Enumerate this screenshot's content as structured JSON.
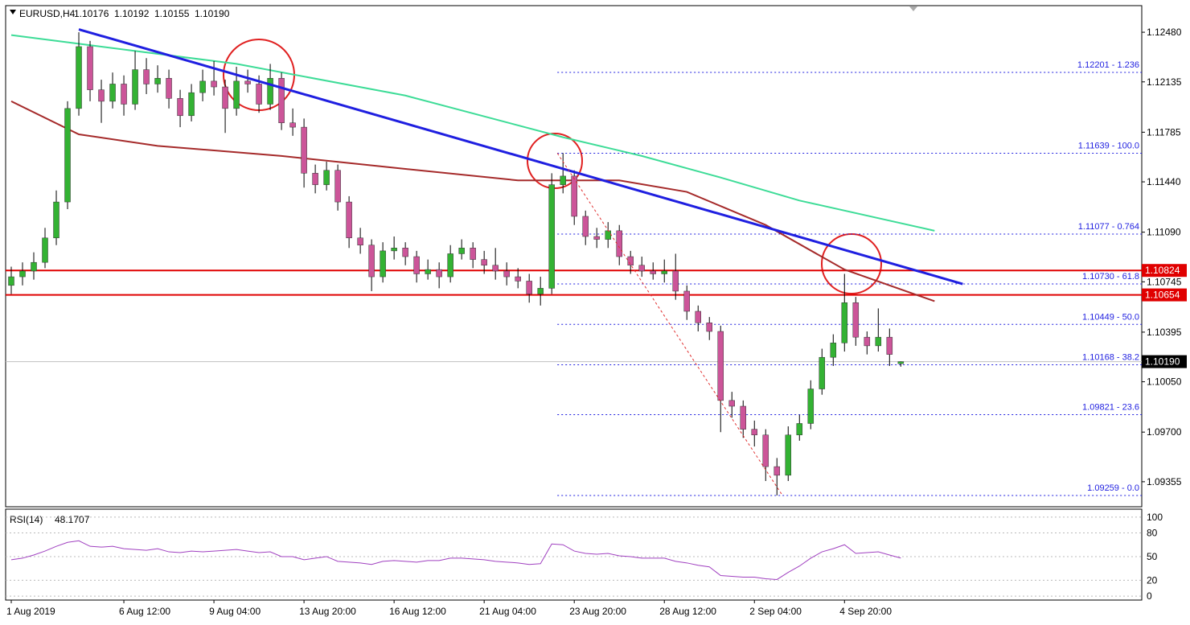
{
  "header": {
    "symbol": "EURUSD,H4",
    "quote": [
      "1.10176",
      "1.10192",
      "1.10155",
      "1.10190"
    ]
  },
  "chart_data": {
    "type": "candlestick",
    "up_color": "#33b233",
    "down_color": "#cc5599",
    "wick_color": "#000000",
    "xlim": [
      -0.5,
      100.4
    ],
    "xticks": [
      {
        "value": 0,
        "label": "1 Aug 2019"
      },
      {
        "value": 10,
        "label": "6 Aug 12:00"
      },
      {
        "value": 18,
        "label": "9 Aug 04:00"
      },
      {
        "value": 26,
        "label": "13 Aug 20:00"
      },
      {
        "value": 34,
        "label": "16 Aug 12:00"
      },
      {
        "value": 42,
        "label": "21 Aug 04:00"
      },
      {
        "value": 50,
        "label": "23 Aug 20:00"
      },
      {
        "value": 58,
        "label": "28 Aug 12:00"
      },
      {
        "value": 66,
        "label": "2 Sep 04:00"
      },
      {
        "value": 74,
        "label": "4 Sep 20:00"
      }
    ],
    "ylim": [
      1.09181,
      1.12665
    ],
    "yticks": [
      {
        "value": 1.1248,
        "label": "1.12480"
      },
      1.12135,
      1.11785,
      {
        "value": 1.1144,
        "label": "1.11440"
      },
      {
        "value": 1.1109,
        "label": "1.11090"
      },
      1.10745,
      1.10395,
      {
        "value": 1.1005,
        "label": "1.10050"
      },
      {
        "value": 1.097,
        "label": "1.09700"
      },
      1.09355
    ],
    "ohlc": [
      [
        1.1072,
        1.1085,
        1.1066,
        1.1078
      ],
      [
        1.1078,
        1.1088,
        1.1072,
        1.1082
      ],
      [
        1.1082,
        1.1095,
        1.1076,
        1.1088
      ],
      [
        1.1088,
        1.1112,
        1.1084,
        1.1105
      ],
      [
        1.1105,
        1.1138,
        1.11,
        1.113
      ],
      [
        1.113,
        1.12,
        1.1125,
        1.1195
      ],
      [
        1.1195,
        1.1248,
        1.119,
        1.1238
      ],
      [
        1.1238,
        1.1242,
        1.12,
        1.1208
      ],
      [
        1.1208,
        1.1215,
        1.1185,
        1.12
      ],
      [
        1.12,
        1.122,
        1.1195,
        1.1212
      ],
      [
        1.1212,
        1.1218,
        1.119,
        1.1198
      ],
      [
        1.1198,
        1.1235,
        1.1194,
        1.1222
      ],
      [
        1.1222,
        1.123,
        1.1205,
        1.1212
      ],
      [
        1.1212,
        1.1225,
        1.1206,
        1.1216
      ],
      [
        1.1216,
        1.1222,
        1.1195,
        1.1202
      ],
      [
        1.1202,
        1.1208,
        1.1182,
        1.119
      ],
      [
        1.119,
        1.1212,
        1.1186,
        1.1206
      ],
      [
        1.1206,
        1.1222,
        1.12,
        1.1214
      ],
      [
        1.1214,
        1.1228,
        1.1204,
        1.121
      ],
      [
        1.121,
        1.1215,
        1.1178,
        1.1195
      ],
      [
        1.1195,
        1.1224,
        1.119,
        1.1214
      ],
      [
        1.1214,
        1.1222,
        1.1206,
        1.1212
      ],
      [
        1.1212,
        1.1218,
        1.1192,
        1.1198
      ],
      [
        1.1198,
        1.1226,
        1.1194,
        1.1216
      ],
      [
        1.1216,
        1.122,
        1.118,
        1.1185
      ],
      [
        1.1185,
        1.1195,
        1.1176,
        1.1182
      ],
      [
        1.1182,
        1.1188,
        1.114,
        1.115
      ],
      [
        1.115,
        1.1156,
        1.1136,
        1.1142
      ],
      [
        1.1142,
        1.1158,
        1.1138,
        1.1152
      ],
      [
        1.1152,
        1.1156,
        1.1124,
        1.113
      ],
      [
        1.113,
        1.1134,
        1.1098,
        1.1105
      ],
      [
        1.1105,
        1.1112,
        1.1094,
        1.11
      ],
      [
        1.11,
        1.1104,
        1.1068,
        1.1078
      ],
      [
        1.1078,
        1.1102,
        1.1074,
        1.1096
      ],
      [
        1.1096,
        1.1106,
        1.109,
        1.1098
      ],
      [
        1.1098,
        1.1102,
        1.1086,
        1.1092
      ],
      [
        1.1092,
        1.1096,
        1.1074,
        1.108
      ],
      [
        1.108,
        1.109,
        1.1076,
        1.1083
      ],
      [
        1.1083,
        1.1088,
        1.107,
        1.1078
      ],
      [
        1.1078,
        1.11,
        1.1074,
        1.1094
      ],
      [
        1.1094,
        1.1104,
        1.109,
        1.1098
      ],
      [
        1.1098,
        1.1102,
        1.1084,
        1.109
      ],
      [
        1.109,
        1.1096,
        1.108,
        1.1086
      ],
      [
        1.1086,
        1.1098,
        1.1076,
        1.1082
      ],
      [
        1.1082,
        1.1088,
        1.1072,
        1.1078
      ],
      [
        1.1078,
        1.1084,
        1.107,
        1.1075
      ],
      [
        1.1075,
        1.108,
        1.106,
        1.1066
      ],
      [
        1.1066,
        1.1078,
        1.1058,
        1.107
      ],
      [
        1.107,
        1.115,
        1.1066,
        1.1142
      ],
      [
        1.1142,
        1.1164,
        1.1136,
        1.1148
      ],
      [
        1.1148,
        1.1152,
        1.1114,
        1.112
      ],
      [
        1.112,
        1.1124,
        1.11,
        1.1106
      ],
      [
        1.1106,
        1.1112,
        1.1098,
        1.1104
      ],
      [
        1.1104,
        1.1116,
        1.1098,
        1.111
      ],
      [
        1.111,
        1.1114,
        1.1086,
        1.1092
      ],
      [
        1.1092,
        1.1096,
        1.108,
        1.1086
      ],
      [
        1.1086,
        1.1092,
        1.1078,
        1.1082
      ],
      [
        1.1082,
        1.1088,
        1.1076,
        1.108
      ],
      [
        1.108,
        1.109,
        1.1074,
        1.1082
      ],
      [
        1.1082,
        1.1094,
        1.1062,
        1.1068
      ],
      [
        1.1068,
        1.1072,
        1.1048,
        1.1054
      ],
      [
        1.1054,
        1.1058,
        1.104,
        1.1046
      ],
      [
        1.1046,
        1.105,
        1.1034,
        1.104
      ],
      [
        1.104,
        1.1044,
        1.097,
        1.0992
      ],
      [
        1.0992,
        1.0998,
        1.098,
        1.0988
      ],
      [
        1.0988,
        1.0992,
        1.0966,
        1.0972
      ],
      [
        1.0972,
        1.0978,
        1.096,
        1.0968
      ],
      [
        1.0968,
        1.0972,
        1.0936,
        1.0946
      ],
      [
        1.0946,
        1.0952,
        1.0926,
        1.094
      ],
      [
        1.094,
        1.0974,
        1.0936,
        1.0968
      ],
      [
        1.0968,
        1.0982,
        1.0964,
        1.0976
      ],
      [
        1.0976,
        1.1006,
        1.0972,
        1.1
      ],
      [
        1.1,
        1.1028,
        1.0996,
        1.1022
      ],
      [
        1.1022,
        1.1038,
        1.1016,
        1.1032
      ],
      [
        1.1032,
        1.108,
        1.1026,
        1.106
      ],
      [
        1.106,
        1.1064,
        1.103,
        1.1036
      ],
      [
        1.1036,
        1.104,
        1.1024,
        1.103
      ],
      [
        1.103,
        1.1056,
        1.1026,
        1.1036
      ],
      [
        1.1036,
        1.1042,
        1.1016,
        1.1024
      ],
      [
        1.10176,
        1.10192,
        1.10155,
        1.1019
      ]
    ],
    "series": [
      {
        "color": "#3ddc97",
        "x": [
          0,
          6,
          20,
          35,
          49,
          56,
          63,
          70,
          82
        ],
        "values": [
          1.1246,
          1.124,
          1.1226,
          1.1204,
          1.1175,
          1.1162,
          1.1147,
          1.1131,
          1.111
        ]
      },
      {
        "color": "#a52a2a",
        "x": [
          0,
          6,
          13,
          24,
          35,
          45,
          54,
          60,
          67,
          74,
          82
        ],
        "values": [
          1.12,
          1.1177,
          1.1169,
          1.1162,
          1.1153,
          1.1145,
          1.1145,
          1.1137,
          1.1114,
          1.1083,
          1.1061
        ]
      }
    ],
    "trendlines": [
      {
        "color": "#1f1fe0",
        "width": 3,
        "x": [
          6,
          84.5
        ],
        "values": [
          1.125,
          1.1073
        ]
      },
      {
        "color": "#e03030",
        "width": 1,
        "dash": true,
        "x": [
          48.5,
          68.5
        ],
        "values": [
          1.11639,
          1.09259
        ]
      }
    ],
    "fib_start": 48.5,
    "fib_levels": [
      {
        "value": 1.12201,
        "label": "1.12201 - 1.236"
      },
      {
        "value": 1.11639,
        "label": "1.11639 - 100.0"
      },
      {
        "value": 1.11077,
        "label": "1.11077 - 0.764"
      },
      {
        "value": 1.1073,
        "label": "1.10730 - 61.8"
      },
      {
        "value": 1.10449,
        "label": "1.10449 - 50.0"
      },
      {
        "value": 1.10168,
        "label": "1.10168 - 38.2"
      },
      {
        "value": 1.09821,
        "label": "1.09821 - 23.6"
      },
      {
        "value": 1.09259,
        "label": "1.09259 - 0.0"
      }
    ],
    "fib_color": "#1f1fe0",
    "hlines": [
      {
        "value": 1.10824,
        "label": "1.10824",
        "color": "#e00000"
      },
      {
        "value": 1.10654,
        "label": "1.10654",
        "color": "#e00000"
      },
      {
        "value": 1.1019,
        "label": "1.10190",
        "color": "#c0c0c0",
        "box": "#000000"
      }
    ],
    "rsi": {
      "name": "RSI(14)",
      "color": "#a040c0",
      "ylim": [
        -5,
        110
      ],
      "yticks": [
        100,
        80,
        50,
        20,
        0
      ],
      "values": [
        46,
        48,
        52,
        57,
        63,
        68,
        70,
        63,
        62,
        63,
        60,
        59,
        58,
        60,
        56,
        55,
        57,
        56,
        57,
        58,
        59,
        57,
        55,
        56,
        50,
        50,
        46,
        48,
        50,
        44,
        43,
        42,
        40,
        44,
        45,
        44,
        43,
        45,
        45,
        48,
        48,
        47,
        46,
        44,
        43,
        42,
        40,
        41,
        66,
        65,
        57,
        54,
        53,
        54,
        51,
        50,
        48,
        48,
        48,
        44,
        42,
        39,
        37,
        26,
        25,
        24,
        24,
        22,
        21,
        30,
        38,
        48,
        56,
        60,
        65,
        54,
        55,
        56,
        52,
        48.1707
      ]
    }
  }
}
